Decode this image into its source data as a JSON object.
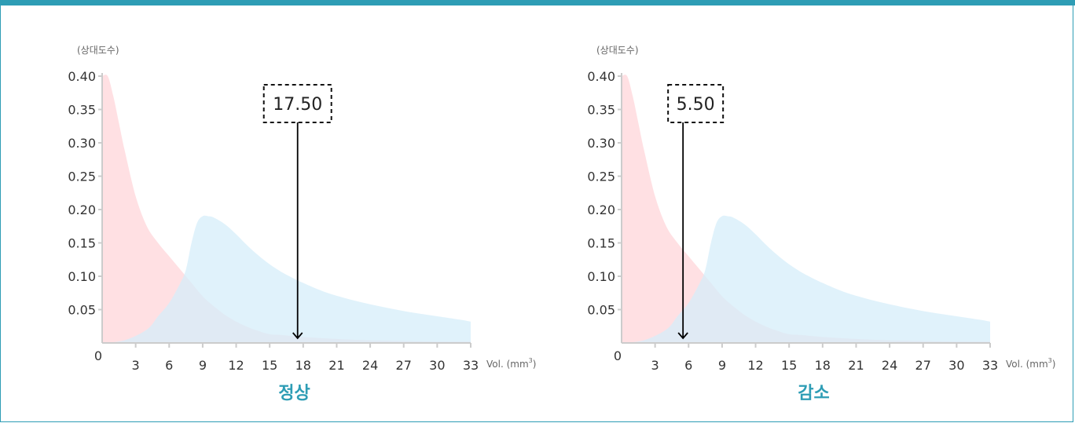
{
  "colors": {
    "accent": "#2e9db5",
    "pink_series": "#ffd6da",
    "blue_series": "#d6eefa",
    "axis": "#cccccc"
  },
  "chart_data": [
    {
      "type": "area",
      "panel_label": "정상",
      "ylabel": "(상대도수)",
      "xlabel": "Vol. (mm",
      "xlabel_sup": "3",
      "xlabel_close": ")",
      "origin_label": "0",
      "xlim": [
        0,
        33
      ],
      "ylim": [
        0,
        0.4
      ],
      "x_ticks": [
        3,
        6,
        9,
        12,
        15,
        18,
        21,
        24,
        27,
        30,
        33
      ],
      "y_ticks": [
        "0.40",
        "0.35",
        "0.30",
        "0.25",
        "0.20",
        "0.15",
        "0.10",
        "0.05"
      ],
      "series": [
        {
          "x": [
            0,
            0.5,
            1,
            1.5,
            2,
            3,
            4,
            5,
            6,
            7,
            8,
            9,
            10,
            11,
            12,
            13,
            14,
            15,
            16,
            18,
            21,
            24,
            27,
            30,
            33
          ],
          "y": [
            0.4,
            0.4,
            0.37,
            0.33,
            0.29,
            0.22,
            0.175,
            0.15,
            0.13,
            0.11,
            0.09,
            0.07,
            0.055,
            0.042,
            0.032,
            0.024,
            0.018,
            0.013,
            0.012,
            0.009,
            0.006,
            0.004,
            0.003,
            0.002,
            0.002
          ],
          "color": "#ffd6da"
        },
        {
          "x": [
            0,
            2,
            4,
            5,
            6,
            7,
            7.5,
            8,
            8.5,
            9,
            9.5,
            10,
            11,
            12,
            13,
            14,
            15,
            16,
            17,
            18,
            20,
            22,
            24,
            26,
            28,
            30,
            32,
            33
          ],
          "y": [
            0,
            0.004,
            0.02,
            0.04,
            0.06,
            0.09,
            0.11,
            0.15,
            0.18,
            0.19,
            0.19,
            0.188,
            0.178,
            0.163,
            0.146,
            0.131,
            0.118,
            0.107,
            0.098,
            0.09,
            0.076,
            0.066,
            0.058,
            0.051,
            0.045,
            0.04,
            0.035,
            0.032
          ],
          "color": "#d6eefa"
        }
      ],
      "marker": {
        "x": 17.5,
        "label": "17.50"
      }
    },
    {
      "type": "area",
      "panel_label": "감소",
      "ylabel": "(상대도수)",
      "xlabel": "Vol. (mm",
      "xlabel_sup": "3",
      "xlabel_close": ")",
      "origin_label": "0",
      "xlim": [
        0,
        33
      ],
      "ylim": [
        0,
        0.4
      ],
      "x_ticks": [
        3,
        6,
        9,
        12,
        15,
        18,
        21,
        24,
        27,
        30,
        33
      ],
      "y_ticks": [
        "0.40",
        "0.35",
        "0.30",
        "0.25",
        "0.20",
        "0.15",
        "0.10",
        "0.05"
      ],
      "series": [
        {
          "x": [
            0,
            0.5,
            1,
            1.5,
            2,
            3,
            4,
            5,
            6,
            7,
            8,
            9,
            10,
            11,
            12,
            13,
            14,
            15,
            16,
            18,
            21,
            24,
            27,
            30,
            33
          ],
          "y": [
            0.4,
            0.4,
            0.37,
            0.33,
            0.29,
            0.22,
            0.175,
            0.15,
            0.13,
            0.11,
            0.09,
            0.07,
            0.055,
            0.042,
            0.032,
            0.024,
            0.018,
            0.013,
            0.012,
            0.009,
            0.006,
            0.004,
            0.003,
            0.002,
            0.002
          ],
          "color": "#ffd6da"
        },
        {
          "x": [
            0,
            2,
            4,
            5,
            6,
            7,
            7.5,
            8,
            8.5,
            9,
            9.5,
            10,
            11,
            12,
            13,
            14,
            15,
            16,
            17,
            18,
            20,
            22,
            24,
            26,
            28,
            30,
            32,
            33
          ],
          "y": [
            0,
            0.004,
            0.02,
            0.04,
            0.06,
            0.09,
            0.11,
            0.15,
            0.18,
            0.19,
            0.19,
            0.188,
            0.178,
            0.163,
            0.146,
            0.131,
            0.118,
            0.107,
            0.098,
            0.09,
            0.076,
            0.066,
            0.058,
            0.051,
            0.045,
            0.04,
            0.035,
            0.032
          ],
          "color": "#d6eefa"
        }
      ],
      "marker": {
        "x": 5.5,
        "label": "5.50"
      }
    }
  ]
}
